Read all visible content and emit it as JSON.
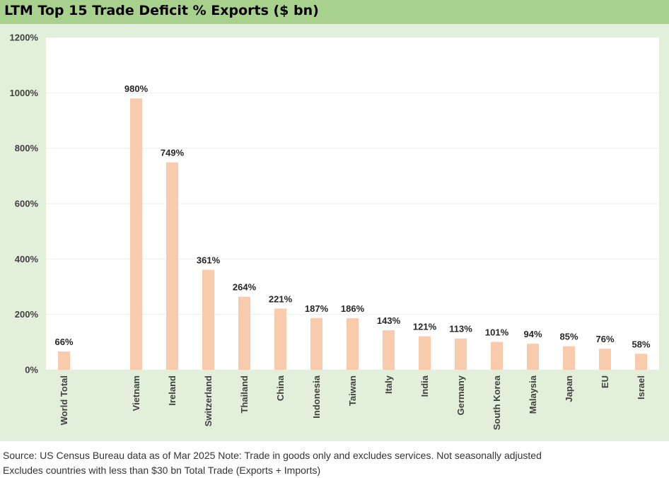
{
  "title": "LTM Top 15 Trade Deficit % Exports ($ bn)",
  "chart_data": {
    "type": "bar",
    "categories": [
      "World Total",
      "",
      "Vietnam",
      "Ireland",
      "Switzerland",
      "Thailand",
      "China",
      "Indonesia",
      "Taiwan",
      "Italy",
      "India",
      "Germany",
      "South Korea",
      "Malaysia",
      "Japan",
      "EU",
      "Israel"
    ],
    "values": [
      66,
      null,
      980,
      749,
      361,
      264,
      221,
      187,
      186,
      143,
      121,
      113,
      101,
      94,
      85,
      76,
      58
    ],
    "data_labels": [
      "66%",
      "",
      "980%",
      "749%",
      "361%",
      "264%",
      "221%",
      "187%",
      "186%",
      "143%",
      "121%",
      "113%",
      "101%",
      "94%",
      "85%",
      "76%",
      "58%"
    ],
    "yticks": [
      0,
      200,
      400,
      600,
      800,
      1000,
      1200
    ],
    "ytick_labels": [
      "0%",
      "200%",
      "400%",
      "600%",
      "800%",
      "1000%",
      "1200%"
    ],
    "ylim": [
      0,
      1200
    ],
    "bar_color": "#f8cbad",
    "grid": true
  },
  "notes": {
    "line1": "Source: US Census Bureau data as of Mar 2025 Note: Trade in goods only and excludes services. Not seasonally adjusted",
    "line2": "Excludes countries with less than $30 bn Total Trade (Exports + Imports)"
  }
}
